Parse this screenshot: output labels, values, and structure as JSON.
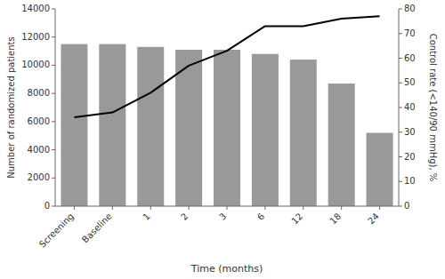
{
  "chart_data": {
    "type": "bar",
    "categories": [
      "Screening",
      "Baseline",
      "1",
      "2",
      "3",
      "6",
      "12",
      "18",
      "24"
    ],
    "series": [
      {
        "type": "bar",
        "color": "#999999",
        "values": [
          11500,
          11500,
          11300,
          11100,
          11100,
          10800,
          10400,
          8700,
          5200
        ]
      },
      {
        "type": "line",
        "color": "#000000",
        "axis": "y2",
        "values": [
          36,
          38,
          46,
          57,
          63,
          73,
          73,
          76,
          77
        ]
      }
    ],
    "xlabel": "Time (months)",
    "ylabel": "Number of randomized patients",
    "y2label": "Control rate (<140/90 mmHg), %",
    "ylim": [
      0,
      14000
    ],
    "yticks": [
      0,
      2000,
      4000,
      6000,
      8000,
      10000,
      12000,
      14000
    ],
    "y2lim": [
      0,
      80
    ],
    "y2ticks": [
      0,
      10,
      20,
      30,
      40,
      50,
      60,
      70,
      80
    ],
    "grid": false
  }
}
